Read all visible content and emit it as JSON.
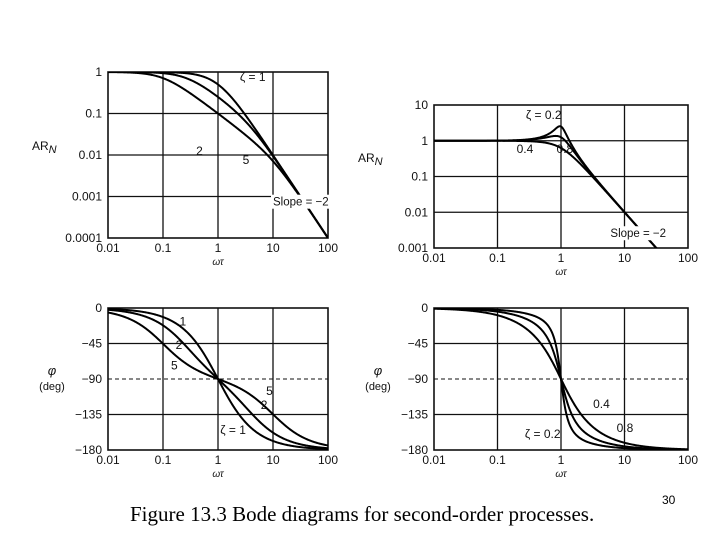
{
  "slide": {
    "caption": "Figure 13.3 Bode diagrams for second-order processes.",
    "page_number": "30"
  },
  "chart_data": [
    {
      "type": "line",
      "xscale": "log",
      "yscale": "log",
      "xlim": [
        0.01,
        100
      ],
      "ylim": [
        0.0001,
        1
      ],
      "xlabel": "ωτ",
      "ylabel": "AR_N",
      "xticks": [
        "0.01",
        "0.1",
        "1",
        "10",
        "100"
      ],
      "yticks": [
        "0.0001",
        "0.001",
        "0.01",
        "0.1",
        "1"
      ],
      "grid": true,
      "zetas": [
        1,
        2,
        5
      ],
      "labels": [
        {
          "text": "ζ = 1",
          "x": 2.5,
          "y": 0.6
        },
        {
          "text": "2",
          "x": 0.4,
          "y": 0.01
        },
        {
          "text": "5",
          "x": 2.8,
          "y": 0.006
        },
        {
          "text": "Slope = −2",
          "x": 10,
          "y": 0.0006
        }
      ]
    },
    {
      "type": "line",
      "xscale": "log",
      "yscale": "log",
      "xlim": [
        0.01,
        100
      ],
      "ylim": [
        0.001,
        10
      ],
      "xlabel": "ωτ",
      "ylabel": "AR_N",
      "xticks": [
        "0.01",
        "0.1",
        "1",
        "10",
        "100"
      ],
      "yticks": [
        "0.001",
        "0.01",
        "0.1",
        "1",
        "10"
      ],
      "grid": true,
      "zetas": [
        0.2,
        0.4,
        0.8
      ],
      "labels": [
        {
          "text": "ζ = 0.2",
          "x": 0.28,
          "y": 4
        },
        {
          "text": "0.4",
          "x": 0.2,
          "y": 0.45
        },
        {
          "text": "0.8",
          "x": 0.85,
          "y": 0.45
        },
        {
          "text": "Slope = −2",
          "x": 6,
          "y": 0.002
        }
      ]
    },
    {
      "type": "line",
      "xscale": "log",
      "xlim": [
        0.01,
        100
      ],
      "ylim": [
        -180,
        0
      ],
      "xlabel": "ωτ",
      "ylabel": "φ",
      "yunit": "(deg)",
      "xticks": [
        "0.01",
        "0.1",
        "1",
        "10",
        "100"
      ],
      "yticks": [
        "0",
        "−45",
        "−90",
        "−135",
        "−180"
      ],
      "grid": true,
      "zetas": [
        1,
        2,
        5
      ],
      "labels": [
        {
          "text": "1",
          "x": 0.2,
          "y": -22
        },
        {
          "text": "2",
          "x": 0.17,
          "y": -52
        },
        {
          "text": "5",
          "x": 0.14,
          "y": -78
        },
        {
          "text": "5",
          "x": 7.5,
          "y": -110
        },
        {
          "text": "2",
          "x": 6,
          "y": -128
        },
        {
          "text": "ζ = 1",
          "x": 1.1,
          "y": -160
        }
      ]
    },
    {
      "type": "line",
      "xscale": "log",
      "xlim": [
        0.01,
        100
      ],
      "ylim": [
        -180,
        0
      ],
      "xlabel": "ωτ",
      "ylabel": "φ",
      "yunit": "(deg)",
      "xticks": [
        "0.01",
        "0.1",
        "1",
        "10",
        "100"
      ],
      "yticks": [
        "0",
        "−45",
        "−90",
        "−135",
        "−180"
      ],
      "grid": true,
      "zetas": [
        0.2,
        0.4,
        0.8
      ],
      "labels": [
        {
          "text": "0.4",
          "x": 3.2,
          "y": -127
        },
        {
          "text": "0.8",
          "x": 7.5,
          "y": -157
        },
        {
          "text": "ζ = 0.2",
          "x": 0.27,
          "y": -165
        }
      ]
    }
  ]
}
